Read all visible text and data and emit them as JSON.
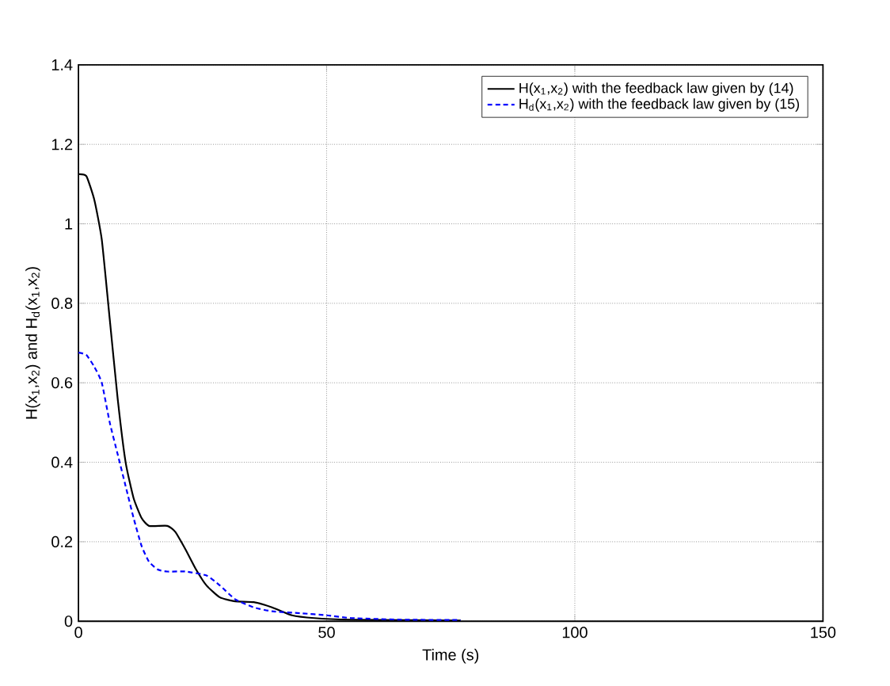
{
  "chart_data": {
    "type": "line",
    "xlabel": "Time (s)",
    "ylabel": "H(x$_{1}$,x$_{2}$) and H$_{d}$(x$_{1}$,x$_{2}$)",
    "xlim": [
      0,
      150
    ],
    "ylim": [
      0,
      1.4
    ],
    "xticks": [
      0,
      50,
      100,
      150
    ],
    "yticks": [
      0,
      0.2,
      0.4,
      0.6,
      0.8,
      1,
      1.2,
      1.4
    ],
    "grid": true,
    "legend": "top right",
    "marker": "none",
    "series": [
      {
        "name": "H(x$_{1}$,x$_{2}$) with the feedback law given by (14)",
        "color": "#000000",
        "line_style": "solid",
        "x": [
          0,
          1.6,
          3.2,
          4.7,
          6.3,
          7.9,
          9.5,
          11.1,
          12.7,
          14.2,
          17.9,
          19.5,
          21.6,
          23.7,
          25.8,
          28.5,
          31.6,
          35.3,
          39,
          43,
          47.5,
          55,
          65,
          77
        ],
        "values": [
          1.125,
          1.12,
          1.06,
          0.96,
          0.76,
          0.56,
          0.4,
          0.31,
          0.26,
          0.24,
          0.24,
          0.225,
          0.18,
          0.13,
          0.09,
          0.06,
          0.05,
          0.048,
          0.035,
          0.015,
          0.008,
          0.004,
          0.003,
          0.002
        ]
      },
      {
        "name": "H$_{d}$(x$_{1}$,x$_{2}$) with the feedback law given by (15)",
        "color": "#0000ff",
        "line_style": "dashed",
        "x": [
          0,
          1.6,
          3.2,
          4.7,
          6.3,
          7.9,
          9.5,
          11.1,
          12.7,
          14.2,
          16,
          17.9,
          21.6,
          25.8,
          28.5,
          31.6,
          35.3,
          39,
          45,
          50,
          55,
          65,
          77
        ],
        "values": [
          0.676,
          0.67,
          0.64,
          0.6,
          0.5,
          0.42,
          0.34,
          0.26,
          0.19,
          0.15,
          0.13,
          0.125,
          0.125,
          0.115,
          0.09,
          0.055,
          0.035,
          0.025,
          0.02,
          0.015,
          0.008,
          0.004,
          0.003
        ]
      }
    ]
  }
}
